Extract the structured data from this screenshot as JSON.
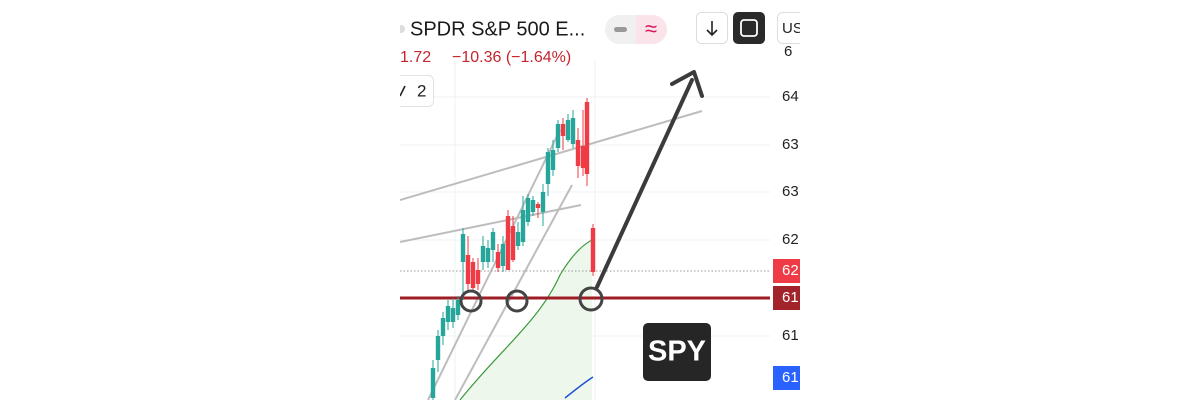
{
  "header": {
    "title": "SPDR S&P 500 E...",
    "price": "1.72",
    "change": "−10.36 (−1.64%)",
    "counter": "2",
    "currency": "US"
  },
  "axis": {
    "labels": [
      "6",
      "64",
      "63",
      "63",
      "62",
      "62",
      "61",
      "61",
      "61"
    ]
  },
  "badge": "SPY"
}
